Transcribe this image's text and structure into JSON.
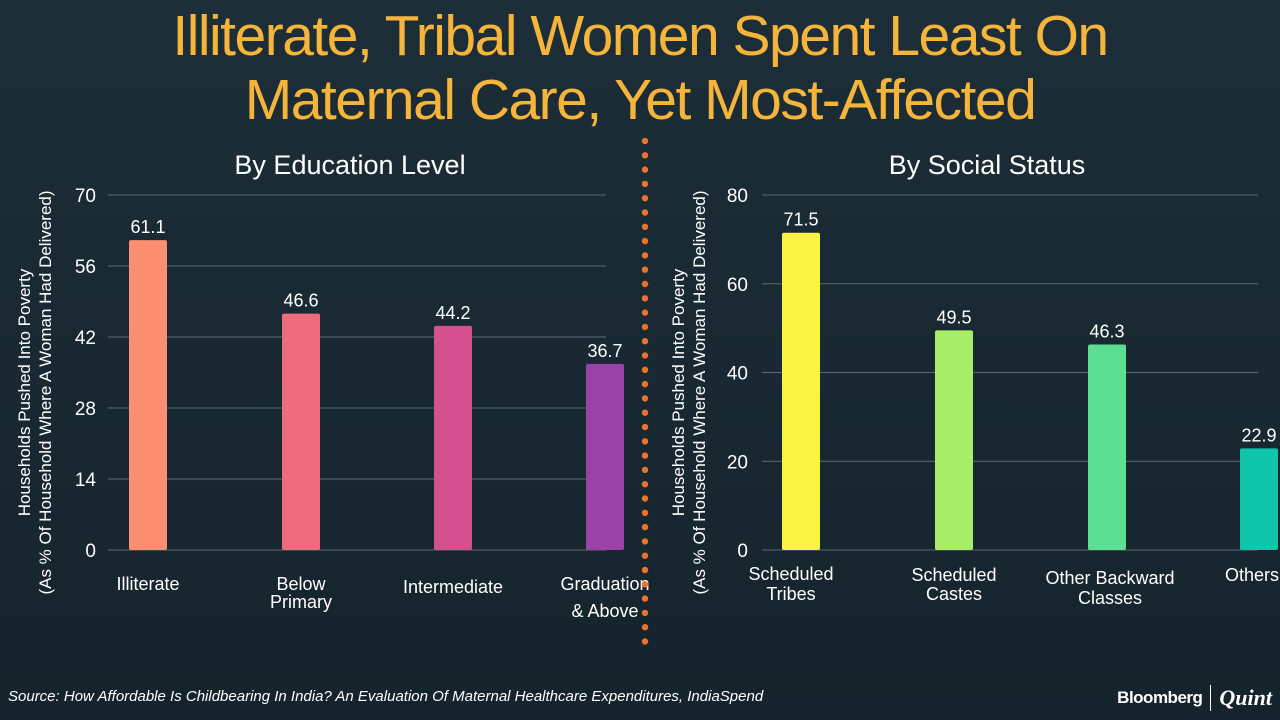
{
  "title": {
    "line1": "Illiterate, Tribal Women Spent Least On",
    "line2": "Maternal Care, Yet Most-Affected"
  },
  "source": "Source: How Affordable Is Childbearing In India? An Evaluation Of Maternal Healthcare Expenditures, IndiaSpend",
  "brand": {
    "bloomberg": "Bloomberg",
    "quint": "Quint"
  },
  "colors": {
    "title": "#f5b43a",
    "divider": "#e8742f",
    "grid": "#5a6a73"
  },
  "chart_data": [
    {
      "type": "bar",
      "title": "By Education Level",
      "ylabel_line1": "Households Pushed Into Poverty",
      "ylabel_line2": "(As % Of Household Where A Woman Had Delivered)",
      "ylim": [
        0,
        70
      ],
      "yticks": [
        0,
        14,
        28,
        42,
        56,
        70
      ],
      "grid": true,
      "categories": [
        [
          "Illiterate"
        ],
        [
          "Below",
          "Primary"
        ],
        [
          "Intermediate"
        ],
        [
          "Graduation",
          "& Above"
        ]
      ],
      "values": [
        61.1,
        46.6,
        44.2,
        36.7
      ],
      "labels": [
        "61.1",
        "46.6",
        "44.2",
        "36.7"
      ],
      "colors": [
        "#fc8f72",
        "#ef6b7e",
        "#d4508f",
        "#9b42a6"
      ]
    },
    {
      "type": "bar",
      "title": "By Social Status",
      "ylabel_line1": "Households Pushed Into Poverty",
      "ylabel_line2": "(As % Of Household Where A Woman Had Delivered)",
      "ylim": [
        0,
        80
      ],
      "yticks": [
        0,
        20,
        40,
        60,
        80
      ],
      "grid": true,
      "categories": [
        [
          "Scheduled",
          "Tribes"
        ],
        [
          "Scheduled",
          "Castes"
        ],
        [
          "Other Backward",
          "Classes"
        ],
        [
          "Others"
        ]
      ],
      "values": [
        71.5,
        49.5,
        46.3,
        22.9
      ],
      "labels": [
        "71.5",
        "49.5",
        "46.3",
        "22.9"
      ],
      "colors": [
        "#fbf342",
        "#a9ee69",
        "#5ddf93",
        "#0fc6ad"
      ]
    }
  ]
}
